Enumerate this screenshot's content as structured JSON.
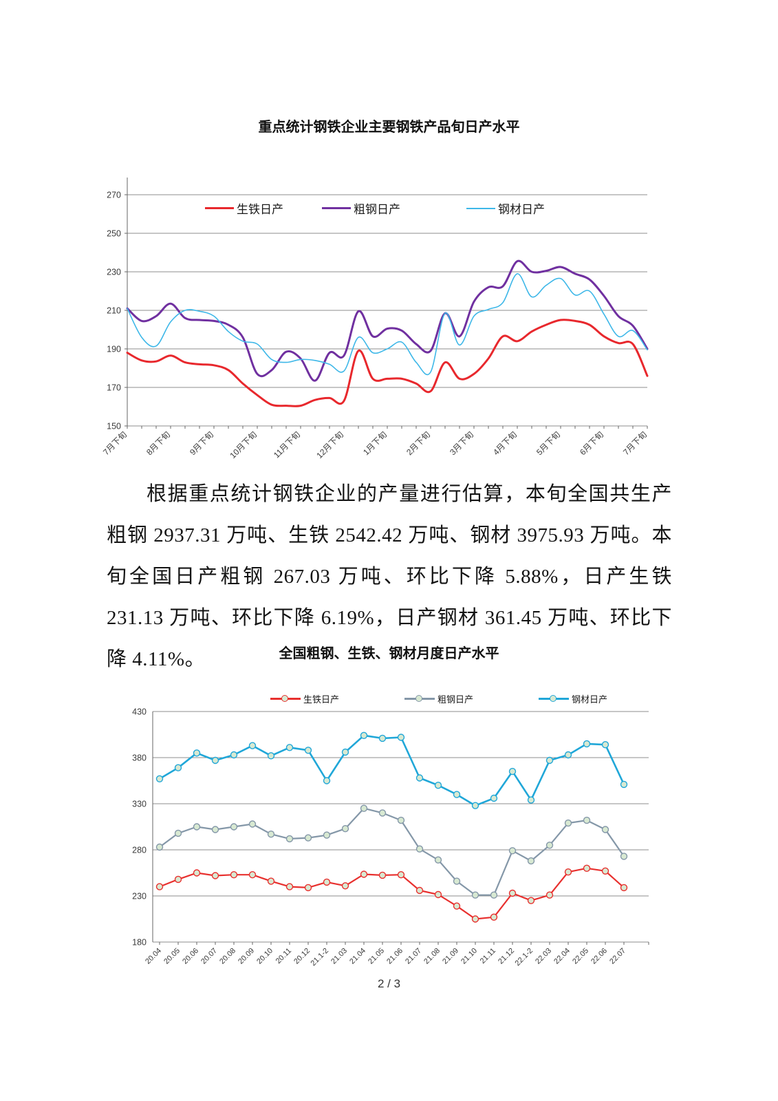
{
  "document": {
    "paragraph": "根据重点统计钢铁企业的产量进行估算，本旬全国共生产粗钢 2937.31 万吨、生铁 2542.42 万吨、钢材 3975.93 万吨。本旬全国日产粗钢 267.03 万吨、环比下降 5.88%，日产生铁 231.13 万吨、环比下降 6.19%，日产钢材 361.45 万吨、环比下降 4.11%。",
    "page_footer": "2 / 3"
  },
  "chart_data": [
    {
      "type": "line",
      "title": "重点统计钢铁企业主要钢铁产品旬日产水平",
      "line_style": "smooth",
      "grid": true,
      "legend_position": "top-inside",
      "ylim": [
        150,
        270
      ],
      "ytick_step": 20,
      "x_tick_labels": [
        "7月下旬",
        "8月下旬",
        "9月下旬",
        "10月下旬",
        "11月下旬",
        "12月下旬",
        "1月下旬",
        "2月下旬",
        "3月下旬",
        "4月下旬",
        "5月下旬",
        "6月下旬",
        "7月下旬"
      ],
      "points_per_label": 3,
      "x_axis_note": "data every ten-day period (旬), labels shown for 下旬 of each month",
      "series": [
        {
          "name": "生铁日产",
          "color": "#e8282d",
          "values": [
            188,
            184,
            183.5,
            186.5,
            183,
            182,
            181.5,
            179,
            172,
            166,
            161,
            160.5,
            160.5,
            163.5,
            164.5,
            163,
            189,
            174.5,
            174.5,
            174.5,
            172,
            168,
            183,
            174.5,
            177,
            185,
            196.5,
            194,
            199,
            202.5,
            205,
            204.5,
            202.5,
            196.5,
            193,
            192.5,
            176
          ]
        },
        {
          "name": "粗钢日产",
          "color": "#7030a0",
          "values": [
            211,
            204.5,
            207,
            213.5,
            206,
            205,
            204.5,
            202.5,
            196,
            177,
            179,
            188.5,
            185,
            173.5,
            188,
            186.5,
            209.5,
            196.5,
            200.5,
            199.5,
            192.5,
            189,
            208.5,
            196.5,
            214.5,
            222,
            222.5,
            235.5,
            230,
            230.5,
            232.5,
            229,
            226,
            217.5,
            207,
            202,
            190
          ]
        },
        {
          "name": "钢材日产",
          "color": "#3db7e8",
          "values": [
            211,
            196,
            191.5,
            204,
            210,
            209.5,
            207,
            199,
            194,
            192.5,
            184.5,
            183,
            184.5,
            184,
            182,
            178.5,
            196,
            188,
            190,
            193.5,
            183,
            178,
            208.5,
            192,
            207,
            210.5,
            214,
            229,
            217,
            223,
            226.5,
            218,
            220,
            208,
            196.5,
            199.5,
            189.5
          ]
        }
      ]
    },
    {
      "type": "line",
      "title": "全国粗钢、生铁、钢材月度日产水平",
      "line_style": "straight",
      "grid": true,
      "legend_position": "top",
      "marker": "circle",
      "marker_fill": "#d8e9d2",
      "ylim": [
        180,
        430
      ],
      "ytick_step": 50,
      "categories": [
        "20.04",
        "20.05",
        "20.06",
        "20.07",
        "20.08",
        "20.09",
        "20.10",
        "20.11",
        "20.12",
        "21.1-2",
        "21.03",
        "21.04",
        "21.05",
        "21.06",
        "21.07",
        "21.08",
        "21.09",
        "21.10",
        "21.11",
        "21.12",
        "22.1-2",
        "22.03",
        "22.04",
        "22.05",
        "22.06",
        "22.07"
      ],
      "series": [
        {
          "name": "生铁日产",
          "color": "#e8302e",
          "values": [
            240,
            248,
            255,
            252,
            253,
            253,
            246,
            240,
            239,
            245,
            241,
            253.5,
            252.5,
            253,
            236,
            231.5,
            219,
            205,
            207,
            233,
            225,
            231,
            256,
            260,
            257,
            239
          ]
        },
        {
          "name": "粗钢日产",
          "color": "#8497a8",
          "values": [
            283,
            298,
            305,
            302,
            305,
            308,
            297,
            292,
            293,
            296,
            303,
            325,
            320,
            312,
            281,
            269,
            246,
            231,
            231,
            279,
            268,
            285,
            309,
            312,
            302,
            273
          ]
        },
        {
          "name": "钢材日产",
          "color": "#20a7d8",
          "values": [
            357,
            369,
            385,
            377,
            383,
            393,
            382,
            391,
            388,
            355,
            386,
            404,
            401,
            402,
            358,
            350,
            340,
            328,
            336,
            365,
            334,
            377,
            383,
            395,
            394,
            351
          ]
        }
      ]
    }
  ]
}
